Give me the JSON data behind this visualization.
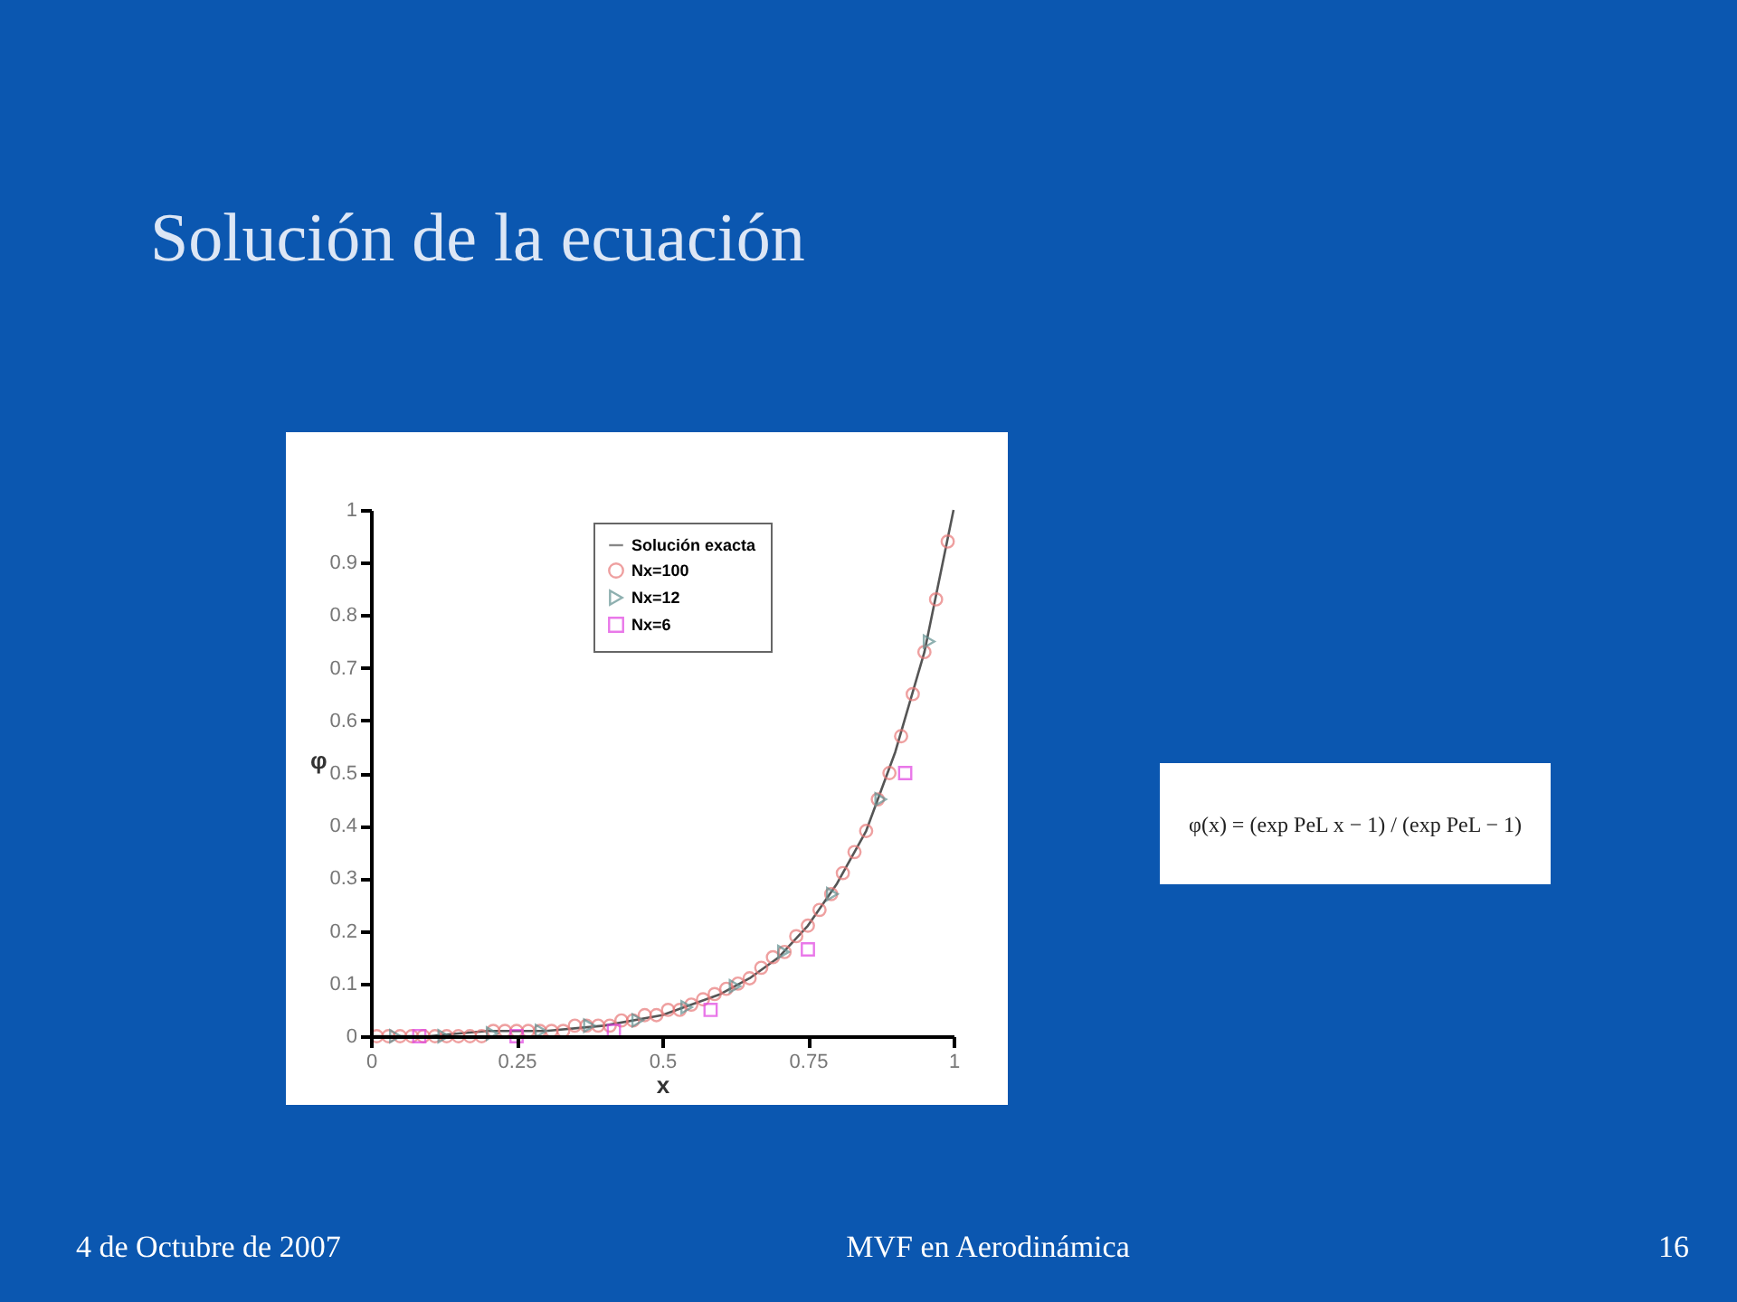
{
  "chart_data": {
    "type": "scatter",
    "title": "Solución de la ecuación",
    "xlabel": "x",
    "ylabel": "φ",
    "xlim": [
      0,
      1
    ],
    "xticks": [
      0,
      0.25,
      0.5,
      0.75,
      1
    ],
    "ylim": [
      0,
      1
    ],
    "yticks": [
      0,
      0.1,
      0.2,
      0.3,
      0.4,
      0.5,
      0.6,
      0.7,
      0.8,
      0.9,
      1
    ],
    "grid": false,
    "legend": "top",
    "series": [
      {
        "name": "Solución exacta",
        "type": "line",
        "color": "#555555",
        "marker": "none",
        "line_style": "solid",
        "x": [
          0,
          0.1,
          0.2,
          0.3,
          0.4,
          0.5,
          0.6,
          0.65,
          0.7,
          0.75,
          0.8,
          0.85,
          0.9,
          0.95,
          1
        ],
        "values": [
          0,
          0,
          0.01,
          0.01,
          0.02,
          0.04,
          0.08,
          0.11,
          0.15,
          0.21,
          0.29,
          0.39,
          0.54,
          0.73,
          1
        ]
      },
      {
        "name": "Nx=100",
        "type": "scatter",
        "color": "#e87878",
        "marker": "circle",
        "x": [
          0.01,
          0.03,
          0.05,
          0.07,
          0.09,
          0.11,
          0.13,
          0.15,
          0.17,
          0.19,
          0.21,
          0.23,
          0.25,
          0.27,
          0.29,
          0.31,
          0.33,
          0.35,
          0.37,
          0.39,
          0.41,
          0.43,
          0.45,
          0.47,
          0.49,
          0.51,
          0.53,
          0.55,
          0.57,
          0.59,
          0.61,
          0.63,
          0.65,
          0.67,
          0.69,
          0.71,
          0.73,
          0.75,
          0.77,
          0.79,
          0.81,
          0.83,
          0.85,
          0.87,
          0.89,
          0.91,
          0.93,
          0.95,
          0.97,
          0.99
        ],
        "values": [
          0,
          0,
          0,
          0,
          0,
          0,
          0,
          0,
          0,
          0,
          0.01,
          0.01,
          0.01,
          0.01,
          0.01,
          0.01,
          0.01,
          0.02,
          0.02,
          0.02,
          0.02,
          0.03,
          0.03,
          0.04,
          0.04,
          0.05,
          0.05,
          0.06,
          0.07,
          0.08,
          0.09,
          0.1,
          0.11,
          0.13,
          0.15,
          0.16,
          0.19,
          0.21,
          0.24,
          0.27,
          0.31,
          0.35,
          0.39,
          0.45,
          0.5,
          0.57,
          0.65,
          0.73,
          0.83,
          0.94
        ]
      },
      {
        "name": "Nx=12",
        "type": "scatter",
        "color": "#5f8f8f",
        "marker": "triangle",
        "x": [
          0.042,
          0.125,
          0.208,
          0.292,
          0.375,
          0.458,
          0.542,
          0.625,
          0.708,
          0.792,
          0.875,
          0.958
        ],
        "values": [
          0,
          0,
          0.005,
          0.01,
          0.02,
          0.03,
          0.055,
          0.095,
          0.16,
          0.27,
          0.45,
          0.75
        ]
      },
      {
        "name": "Nx=6",
        "type": "scatter",
        "color": "#e040e0",
        "marker": "square",
        "x": [
          0.083,
          0.25,
          0.417,
          0.583,
          0.75,
          0.917
        ],
        "values": [
          0,
          0,
          0.01,
          0.05,
          0.165,
          0.5
        ]
      }
    ],
    "annotations": [
      "φ(x) = (exp PeL x − 1) / (exp PeL − 1)",
      "4 de Octubre de 2007",
      "MVF en Aerodinámica",
      "16"
    ]
  }
}
